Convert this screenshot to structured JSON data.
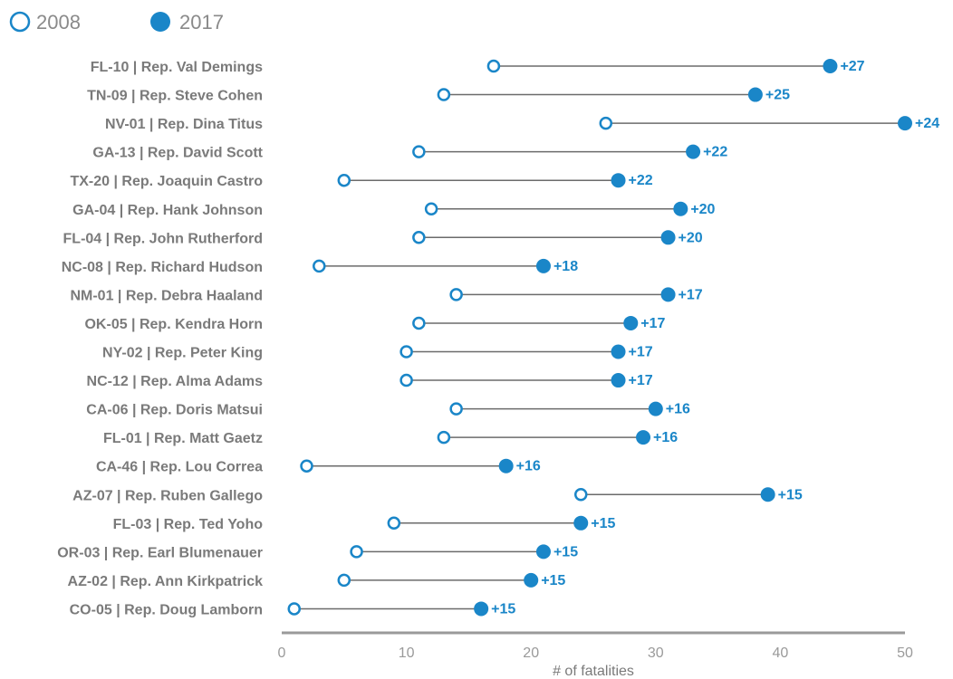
{
  "chart_data": {
    "type": "dumbbell",
    "xlabel": "# of fatalities",
    "xlim": [
      0,
      50
    ],
    "xticks": [
      0,
      10,
      20,
      30,
      40,
      50
    ],
    "series": [
      {
        "name": "2008",
        "style": "hollow-circle"
      },
      {
        "name": "2017",
        "style": "filled-circle"
      }
    ],
    "rows": [
      {
        "label": "FL-10 | Rep. Val Demings",
        "v2008": 17,
        "v2017": 44,
        "diff": "+27"
      },
      {
        "label": "TN-09 | Rep. Steve Cohen",
        "v2008": 13,
        "v2017": 38,
        "diff": "+25"
      },
      {
        "label": "NV-01 | Rep. Dina Titus",
        "v2008": 26,
        "v2017": 50,
        "diff": "+24"
      },
      {
        "label": "GA-13 | Rep. David Scott",
        "v2008": 11,
        "v2017": 33,
        "diff": "+22"
      },
      {
        "label": "TX-20 | Rep. Joaquin Castro",
        "v2008": 5,
        "v2017": 27,
        "diff": "+22"
      },
      {
        "label": "GA-04 | Rep. Hank Johnson",
        "v2008": 12,
        "v2017": 32,
        "diff": "+20"
      },
      {
        "label": "FL-04 | Rep. John Rutherford",
        "v2008": 11,
        "v2017": 31,
        "diff": "+20"
      },
      {
        "label": "NC-08 | Rep. Richard Hudson",
        "v2008": 3,
        "v2017": 21,
        "diff": "+18"
      },
      {
        "label": "NM-01 | Rep. Debra Haaland",
        "v2008": 14,
        "v2017": 31,
        "diff": "+17"
      },
      {
        "label": "OK-05 | Rep. Kendra Horn",
        "v2008": 11,
        "v2017": 28,
        "diff": "+17"
      },
      {
        "label": "NY-02 | Rep. Peter King",
        "v2008": 10,
        "v2017": 27,
        "diff": "+17"
      },
      {
        "label": "NC-12 | Rep. Alma Adams",
        "v2008": 10,
        "v2017": 27,
        "diff": "+17"
      },
      {
        "label": "CA-06 | Rep. Doris Matsui",
        "v2008": 14,
        "v2017": 30,
        "diff": "+16"
      },
      {
        "label": "FL-01 | Rep. Matt Gaetz",
        "v2008": 13,
        "v2017": 29,
        "diff": "+16"
      },
      {
        "label": "CA-46 | Rep. Lou Correa",
        "v2008": 2,
        "v2017": 18,
        "diff": "+16"
      },
      {
        "label": "AZ-07 | Rep. Ruben Gallego",
        "v2008": 24,
        "v2017": 39,
        "diff": "+15"
      },
      {
        "label": "FL-03 | Rep. Ted Yoho",
        "v2008": 9,
        "v2017": 24,
        "diff": "+15"
      },
      {
        "label": "OR-03 | Rep. Earl Blumenauer",
        "v2008": 6,
        "v2017": 21,
        "diff": "+15"
      },
      {
        "label": "AZ-02 | Rep. Ann Kirkpatrick",
        "v2008": 5,
        "v2017": 20,
        "diff": "+15"
      },
      {
        "label": "CO-05 | Rep. Doug Lamborn",
        "v2008": 1,
        "v2017": 16,
        "diff": "+15"
      }
    ]
  },
  "colors": {
    "accent": "#1a86c8",
    "connector": "#6b6b6b",
    "axis": "#9a9a9a",
    "label": "#7a7a7a"
  }
}
